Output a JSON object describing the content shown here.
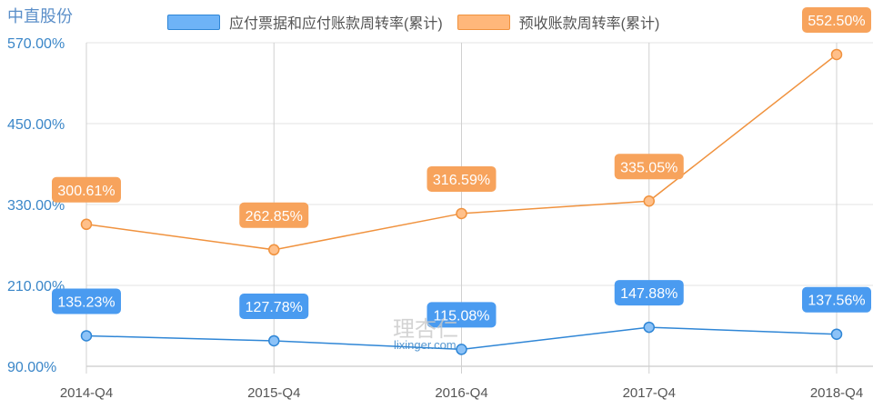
{
  "header": {
    "company": "中直股份"
  },
  "legend": [
    {
      "label": "应付票据和应付账款周转率(累计)",
      "color": "#6eb3f7",
      "border": "#2f86d6"
    },
    {
      "label": "预收账款周转率(累计)",
      "color": "#ffb77a",
      "border": "#f0923e"
    }
  ],
  "watermark": {
    "main": "理杏仁",
    "sub": "lixinger.com"
  },
  "chart_data": {
    "type": "line",
    "title": "中直股份",
    "xlabel": "",
    "ylabel": "",
    "categories": [
      "2014-Q4",
      "2015-Q4",
      "2016-Q4",
      "2017-Q4",
      "2018-Q4"
    ],
    "series": [
      {
        "name": "应付票据和应付账款周转率(累计)",
        "values": [
          135.23,
          127.78,
          115.08,
          147.88,
          137.56
        ],
        "labels": [
          "135.23%",
          "127.78%",
          "115.08%",
          "147.88%",
          "137.56%"
        ],
        "color": "#2f86d6"
      },
      {
        "name": "预收账款周转率(累计)",
        "values": [
          300.61,
          262.85,
          316.59,
          335.05,
          552.5
        ],
        "labels": [
          "300.61%",
          "262.85%",
          "316.59%",
          "335.05%",
          "552.50%"
        ],
        "color": "#f0923e"
      }
    ],
    "yticks": [
      "570.00%",
      "450.00%",
      "330.00%",
      "210.00%",
      "90.00%"
    ],
    "ylim": [
      90,
      570
    ],
    "grid": true,
    "legend_position": "top"
  }
}
